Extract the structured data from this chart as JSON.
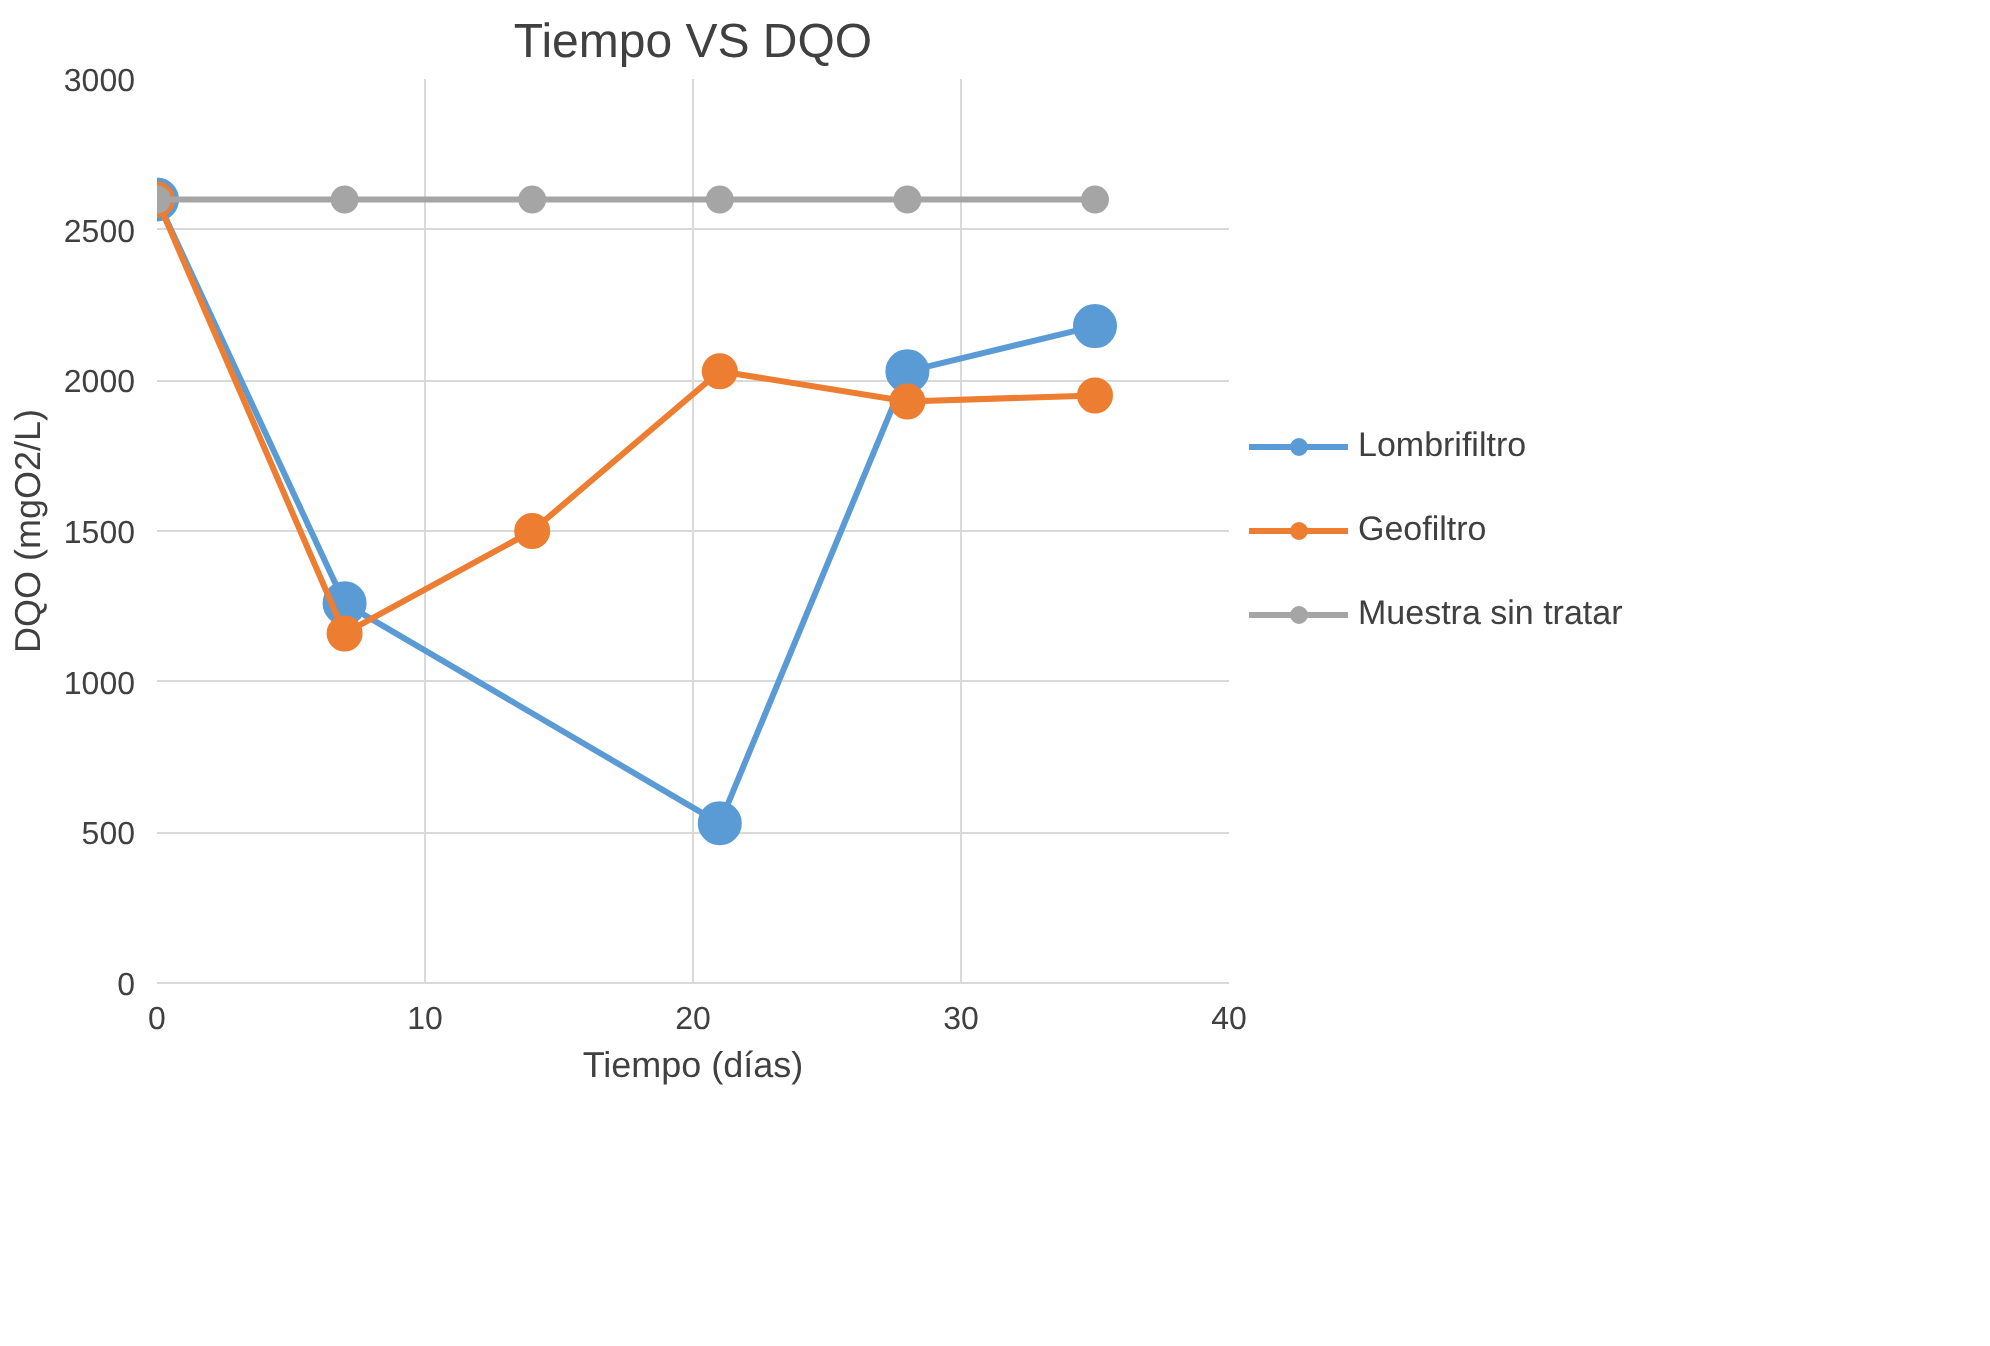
{
  "chart_data": {
    "type": "line",
    "title": "Tiempo VS DQO",
    "xlabel": "Tiempo (días)",
    "ylabel": "DQO (mgO2/L)",
    "xlim": [
      0,
      40
    ],
    "xticks": [
      0,
      10,
      20,
      30,
      40
    ],
    "ylim": [
      0,
      3000
    ],
    "yticks": [
      0,
      500,
      1000,
      1500,
      2000,
      2500,
      3000
    ],
    "grid": true,
    "legend": "right",
    "marker": "circle",
    "line_style": "solid",
    "series": [
      {
        "name": "Lombrifiltro",
        "color": "#5b9bd5",
        "x": [
          0,
          7,
          21,
          28,
          35
        ],
        "values": [
          2600,
          1260,
          530,
          2030,
          2180
        ]
      },
      {
        "name": "Geofiltro",
        "color": "#ed7d31",
        "x": [
          0,
          7,
          14,
          21,
          28,
          35
        ],
        "values": [
          2600,
          1160,
          1500,
          2030,
          1930,
          1950
        ]
      },
      {
        "name": "Muestra sin tratar",
        "color": "#a5a5a5",
        "x": [
          0,
          7,
          14,
          21,
          28,
          35
        ],
        "values": [
          2600,
          2600,
          2600,
          2600,
          2600,
          2600
        ]
      }
    ]
  }
}
